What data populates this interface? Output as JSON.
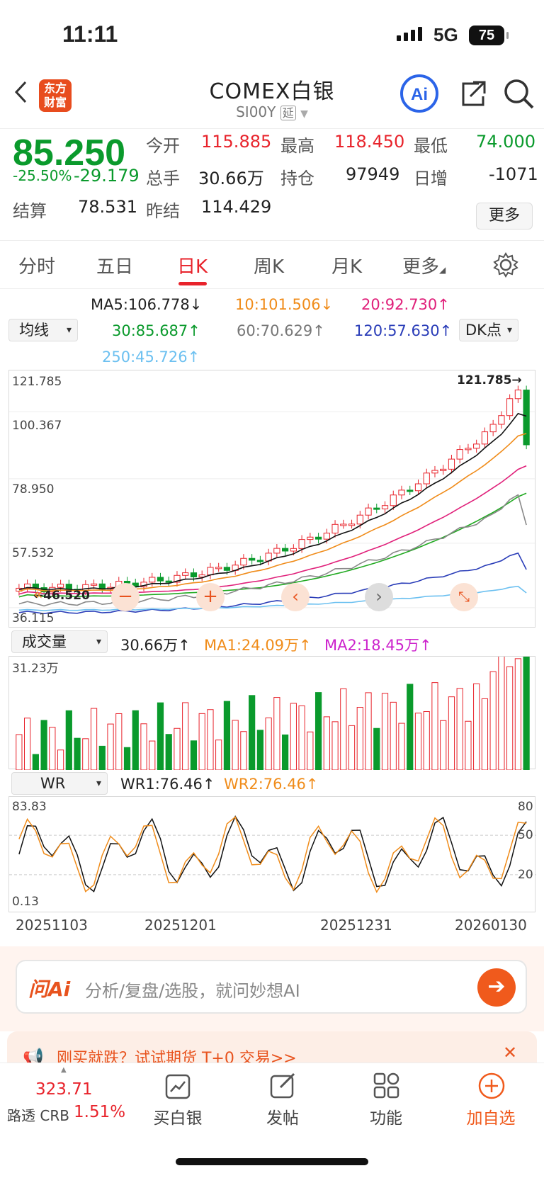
{
  "status": {
    "time": "11:11",
    "network": "5G",
    "battery": "75"
  },
  "header": {
    "logo": "东方财富",
    "title": "COMEX白银",
    "code": "SI00Y",
    "tag": "延"
  },
  "quote": {
    "price": "85.250",
    "pct": "-25.50%",
    "chg": "-29.179",
    "open_l": "今开",
    "open": "115.885",
    "high_l": "最高",
    "high": "118.450",
    "low_l": "最低",
    "low": "74.000",
    "vol_l": "总手",
    "vol": "30.66万",
    "oi_l": "持仓",
    "oi": "97949",
    "inc_l": "日增",
    "inc": "-1071",
    "settle_l": "结算",
    "settle": "78.531",
    "prev_l": "昨结",
    "prev": "114.429",
    "more": "更多"
  },
  "tabs": [
    "分时",
    "五日",
    "日K",
    "周K",
    "月K",
    "更多"
  ],
  "ma": {
    "ma5": "MA5:106.778↓",
    "ma10": "10:101.506↓",
    "ma20": "20:92.730↑",
    "ma30": "30:85.687↑",
    "ma60": "60:70.629↑",
    "ma120": "120:57.630↑",
    "ma250": "250:45.726↑",
    "select": "均线",
    "dk": "DK点"
  },
  "price_axis": [
    "121.785",
    "100.367",
    "78.950",
    "57.532",
    "36.115"
  ],
  "price_marks": {
    "high": "121.785→",
    "low": "←46.520"
  },
  "vol_panel": {
    "select": "成交量",
    "vol": "30.66万↑",
    "ma1": "MA1:24.09万↑",
    "ma2": "MA2:18.45万↑",
    "axis": "31.23万"
  },
  "wr_panel": {
    "select": "WR",
    "wr1": "WR1:76.46↑",
    "wr2": "WR2:76.46↑",
    "top": "83.83",
    "bottom": "0.13",
    "r80": "80",
    "r50": "50",
    "r20": "20"
  },
  "dates": [
    "20251103",
    "20251201",
    "20251231",
    "20260130"
  ],
  "ask": {
    "brand": "问Ai",
    "placeholder": "分析/复盘/选股，就问妙想AI"
  },
  "banner": {
    "text": "刚买就跌？试试期货 T+0 交易>>"
  },
  "tabbar": {
    "crb_val": "323.71",
    "crb_label": "路透 CRB",
    "crb_pct": "1.51%",
    "buy": "买白银",
    "post": "发帖",
    "func": "功能",
    "add": "加自选"
  },
  "colors": {
    "up": "#e8232b",
    "down": "#0a9a2c",
    "ma5": "#111111",
    "ma10": "#f08c1a",
    "ma20": "#e0207a",
    "ma30": "#22aa22",
    "ma60": "#888888",
    "ma120": "#2a3db8",
    "ma250": "#6cc0f0"
  }
}
